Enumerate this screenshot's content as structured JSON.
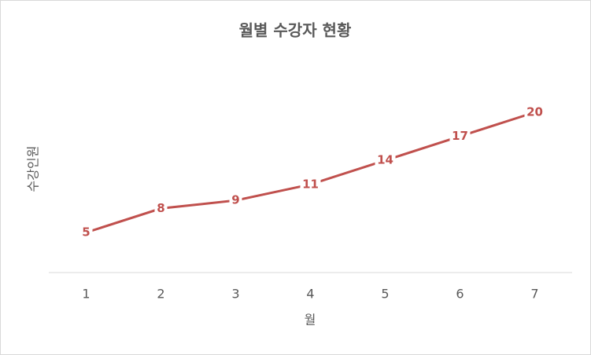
{
  "chart_data": {
    "type": "line",
    "title": "월별 수강자 현황",
    "x_label": "월",
    "y_label": "수강인원",
    "categories": [
      "1",
      "2",
      "3",
      "4",
      "5",
      "6",
      "7"
    ],
    "values": [
      5,
      8,
      9,
      11,
      14,
      17,
      20
    ],
    "color": "#c0504d",
    "ylim": [
      0,
      25
    ],
    "data_labels": true
  }
}
